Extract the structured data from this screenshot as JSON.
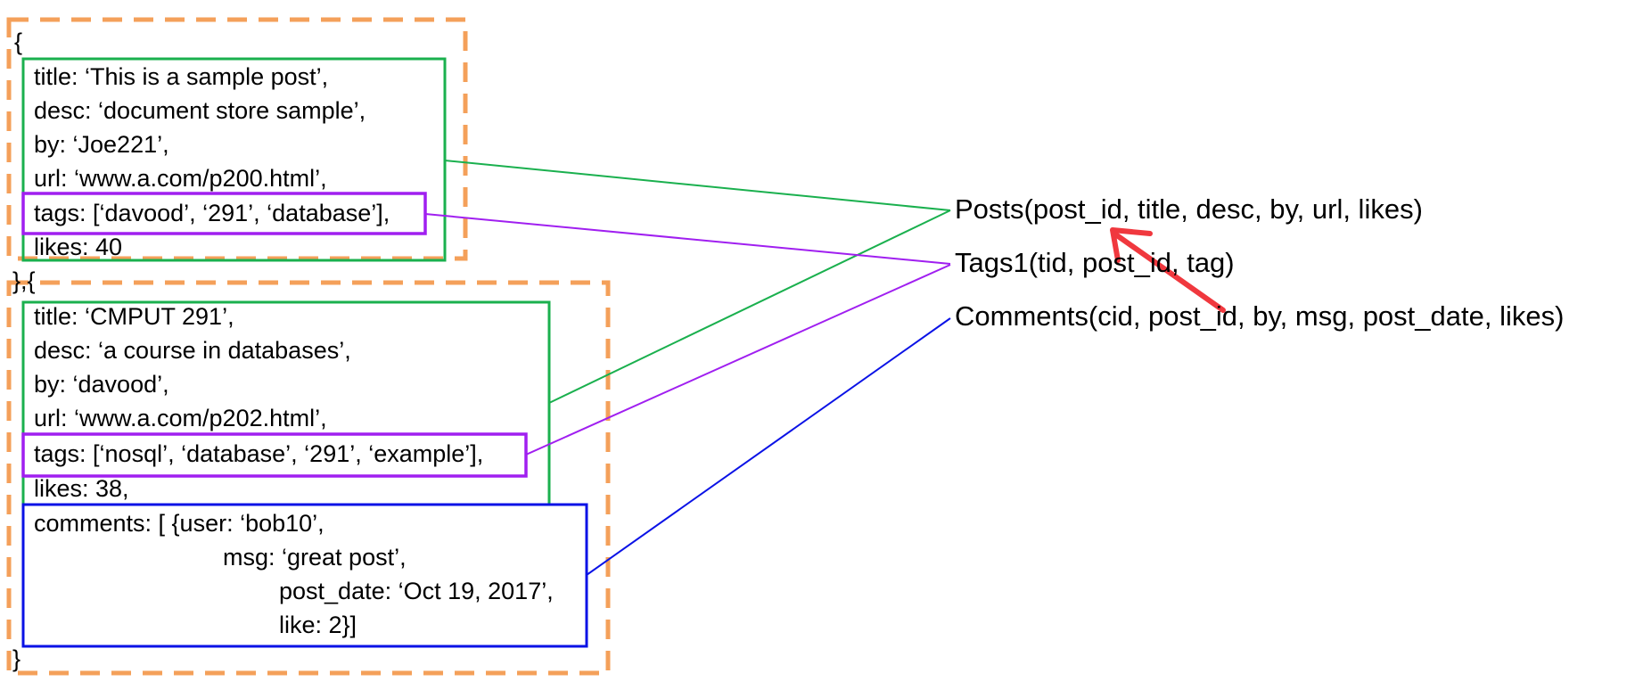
{
  "colors": {
    "document_box": "#F4A05A",
    "field_box": "#1AB04E",
    "tags_box": "#A01FF0",
    "comments_box": "#0A12E6",
    "foreign_key_arrow": "#F0383E"
  },
  "document1": {
    "open": "{",
    "title": "title: ‘This is a sample post’,",
    "desc": "desc: ‘document store sample’,",
    "by": "by: ‘Joe221’,",
    "url": "url: ‘www.a.com/p200.html’,",
    "tags": "tags: [‘davood’, ‘291’, ‘database’],",
    "likes": "likes: 40"
  },
  "separator": "},{",
  "document2": {
    "title": "title: ‘CMPUT 291’,",
    "desc": "desc: ‘a course in databases’,",
    "by": "by: ‘davood’,",
    "url": "url: ‘www.a.com/p202.html’,",
    "tags": "tags: [‘nosql’, ‘database’, ‘291’, ‘example’],",
    "likes": "likes: 38,",
    "comments_line1": "comments: [ {user: ‘bob10’,",
    "comments_line2": "msg: ‘great post’,",
    "comments_line3": "post_date: ‘Oct 19, 2017’,",
    "comments_line4": "like: 2}]",
    "close": "}"
  },
  "schema": {
    "posts": "Posts(post_id, title, desc, by, url, likes)",
    "tags": "Tags1(tid, post_id, tag)",
    "comments": "Comments(cid, post_id, by, msg, post_date, likes)"
  }
}
